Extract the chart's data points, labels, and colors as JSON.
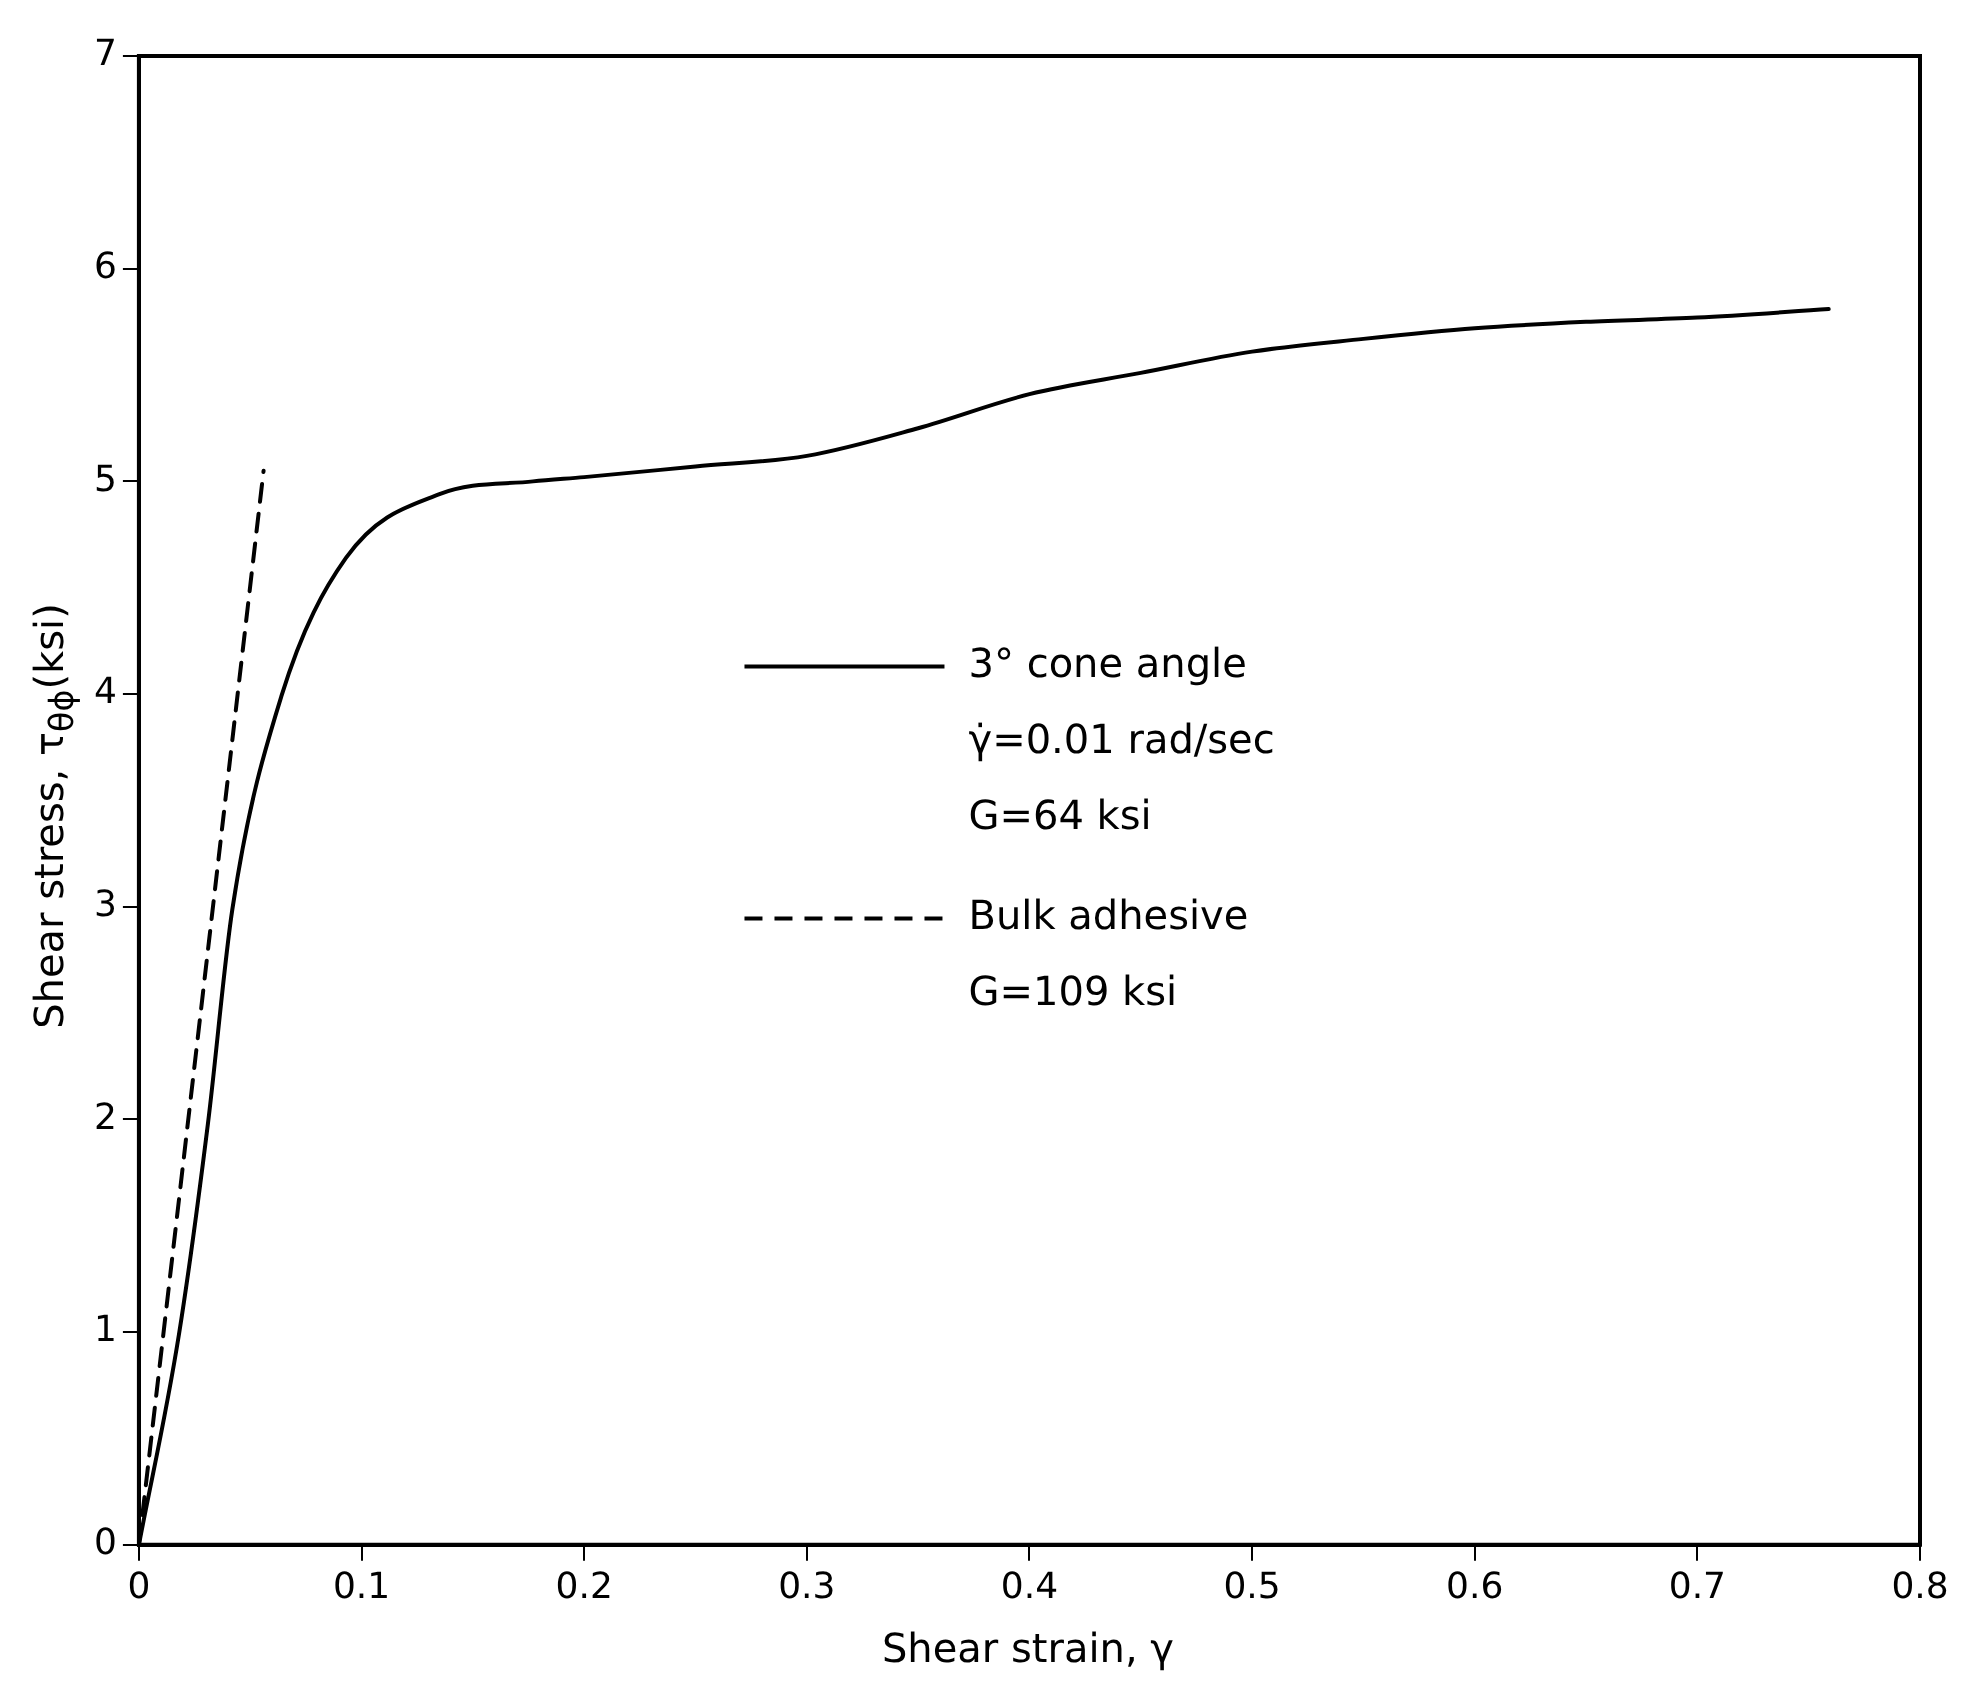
{
  "chart_data": {
    "type": "line",
    "xlabel": "Shear strain, γ",
    "ylabel": "Shear stress, τ$_{θϕ}$(ksi)",
    "xlim": [
      0,
      0.8
    ],
    "xticks": [
      0,
      0.1,
      0.2,
      0.3,
      0.4,
      0.5,
      0.6,
      0.7,
      0.8
    ],
    "ylim": [
      0,
      7
    ],
    "yticks": [
      0,
      1,
      2,
      3,
      4,
      5,
      6,
      7
    ],
    "grid": false,
    "legend": "right",
    "marker": "none",
    "series": [
      {
        "name": "3° cone angle",
        "color": "#000000",
        "line_style": "solid",
        "x": [
          0,
          0.018,
          0.031,
          0.042,
          0.064,
          0.093,
          0.135,
          0.177,
          0.2,
          0.25,
          0.3,
          0.35,
          0.4,
          0.45,
          0.5,
          0.55,
          0.6,
          0.65,
          0.7,
          0.759
        ],
        "values": [
          0,
          0.99,
          1.98,
          2.99,
          3.99,
          4.64,
          4.94,
          5.0,
          5.02,
          5.07,
          5.12,
          5.25,
          5.41,
          5.51,
          5.61,
          5.67,
          5.72,
          5.75,
          5.77,
          5.81
        ]
      },
      {
        "name": "Bulk adhesive",
        "color": "#000000",
        "line_style": "dashed",
        "x": [
          0,
          0.056
        ],
        "values": [
          0,
          5.05
        ]
      }
    ],
    "annotations": [
      "γ̇=0.01 rad/sec",
      "G=64 ksi",
      "G=109 ksi"
    ]
  }
}
